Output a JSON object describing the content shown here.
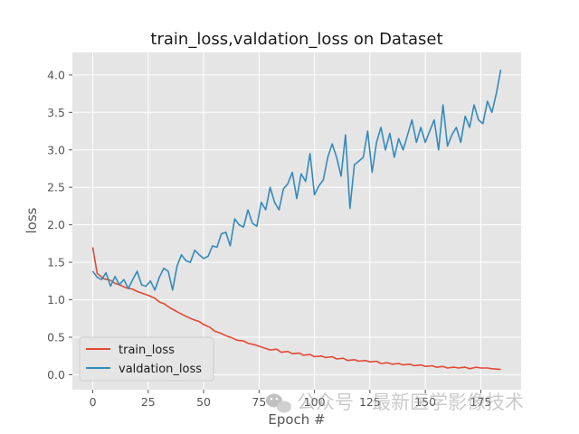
{
  "chart_data": {
    "type": "line",
    "title": "train_loss,valdation_loss on Dataset",
    "xlabel": "Epoch #",
    "ylabel": "loss",
    "xlim": [
      -9.2,
      193.2
    ],
    "ylim": [
      -0.2,
      4.3
    ],
    "xticks": [
      0,
      25,
      50,
      75,
      100,
      125,
      150,
      175
    ],
    "xtick_labels": [
      "0",
      "25",
      "50",
      "75",
      "100",
      "125",
      "150",
      "175"
    ],
    "yticks": [
      0.0,
      0.5,
      1.0,
      1.5,
      2.0,
      2.5,
      3.0,
      3.5,
      4.0
    ],
    "ytick_labels": [
      "0.0",
      "0.5",
      "1.0",
      "1.5",
      "2.0",
      "2.5",
      "3.0",
      "3.5",
      "4.0"
    ],
    "grid": true,
    "legend_position": "lower-left",
    "series": [
      {
        "name": "train_loss",
        "color": "#e24a33",
        "x": [
          0,
          2,
          5,
          8,
          10,
          12,
          15,
          18,
          20,
          22,
          25,
          28,
          30,
          32,
          35,
          38,
          40,
          42,
          45,
          48,
          50,
          53,
          55,
          58,
          60,
          63,
          65,
          68,
          70,
          73,
          75,
          78,
          80,
          83,
          85,
          88,
          90,
          93,
          95,
          98,
          100,
          103,
          105,
          108,
          110,
          113,
          115,
          118,
          120,
          123,
          125,
          128,
          130,
          133,
          135,
          138,
          140,
          143,
          145,
          148,
          150,
          153,
          155,
          158,
          160,
          163,
          165,
          168,
          170,
          173,
          175,
          178,
          180,
          184
        ],
        "y": [
          1.7,
          1.35,
          1.28,
          1.26,
          1.22,
          1.2,
          1.16,
          1.14,
          1.11,
          1.09,
          1.06,
          1.02,
          0.97,
          0.95,
          0.89,
          0.84,
          0.81,
          0.78,
          0.74,
          0.71,
          0.67,
          0.63,
          0.58,
          0.55,
          0.52,
          0.49,
          0.46,
          0.45,
          0.42,
          0.4,
          0.38,
          0.35,
          0.33,
          0.34,
          0.3,
          0.31,
          0.28,
          0.29,
          0.26,
          0.27,
          0.24,
          0.25,
          0.23,
          0.24,
          0.21,
          0.22,
          0.19,
          0.2,
          0.18,
          0.19,
          0.17,
          0.18,
          0.15,
          0.16,
          0.14,
          0.15,
          0.13,
          0.14,
          0.12,
          0.13,
          0.11,
          0.12,
          0.1,
          0.11,
          0.09,
          0.1,
          0.09,
          0.1,
          0.08,
          0.1,
          0.09,
          0.09,
          0.08,
          0.07
        ]
      },
      {
        "name": "valdation_loss",
        "color": "#348abd",
        "x": [
          0,
          2,
          4,
          6,
          8,
          10,
          12,
          14,
          16,
          18,
          20,
          22,
          24,
          26,
          28,
          30,
          32,
          34,
          36,
          38,
          40,
          42,
          44,
          46,
          48,
          50,
          52,
          54,
          56,
          58,
          60,
          62,
          64,
          66,
          68,
          70,
          72,
          74,
          76,
          78,
          80,
          82,
          84,
          86,
          88,
          90,
          92,
          94,
          96,
          98,
          100,
          102,
          104,
          106,
          108,
          110,
          112,
          114,
          116,
          118,
          120,
          122,
          124,
          126,
          128,
          130,
          132,
          134,
          136,
          138,
          140,
          142,
          144,
          146,
          148,
          150,
          152,
          154,
          156,
          158,
          160,
          162,
          164,
          166,
          168,
          170,
          172,
          174,
          176,
          178,
          180,
          182,
          184
        ],
        "y": [
          1.38,
          1.3,
          1.27,
          1.36,
          1.18,
          1.31,
          1.2,
          1.27,
          1.15,
          1.27,
          1.38,
          1.2,
          1.18,
          1.25,
          1.13,
          1.3,
          1.42,
          1.38,
          1.13,
          1.45,
          1.6,
          1.52,
          1.5,
          1.66,
          1.6,
          1.55,
          1.58,
          1.72,
          1.7,
          1.88,
          1.9,
          1.72,
          2.08,
          2.0,
          1.97,
          2.2,
          2.02,
          1.98,
          2.3,
          2.2,
          2.5,
          2.3,
          2.2,
          2.48,
          2.55,
          2.7,
          2.35,
          2.68,
          2.58,
          2.95,
          2.4,
          2.52,
          2.6,
          2.9,
          3.08,
          2.9,
          2.65,
          3.2,
          2.22,
          2.8,
          2.85,
          2.9,
          3.25,
          2.7,
          3.1,
          3.3,
          3.0,
          3.22,
          2.9,
          3.15,
          3.0,
          3.2,
          3.4,
          3.1,
          3.3,
          3.1,
          3.25,
          3.4,
          3.0,
          3.6,
          3.05,
          3.2,
          3.3,
          3.1,
          3.45,
          3.3,
          3.6,
          3.4,
          3.35,
          3.65,
          3.5,
          3.75,
          4.07
        ]
      }
    ]
  },
  "watermark": {
    "text": "公众号 · 最新医学影像技术",
    "icon": "wechat-icon"
  }
}
